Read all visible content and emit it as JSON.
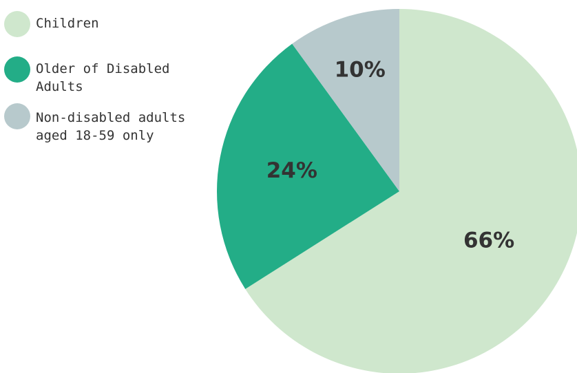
{
  "chart_data": {
    "type": "pie",
    "title": "",
    "series": [
      {
        "name": "Children",
        "value": 66,
        "label": "66%",
        "color": "#cfe7cd"
      },
      {
        "name": "Older of Disabled Adults",
        "value": 24,
        "label": "24%",
        "color": "#23ad87"
      },
      {
        "name": "Non-disabled adults\naged 18-59 only",
        "value": 10,
        "label": "10%",
        "color": "#b7c9cc"
      }
    ],
    "legend_position": "top-left",
    "start_angle": "12 o'clock",
    "direction": "clockwise"
  }
}
